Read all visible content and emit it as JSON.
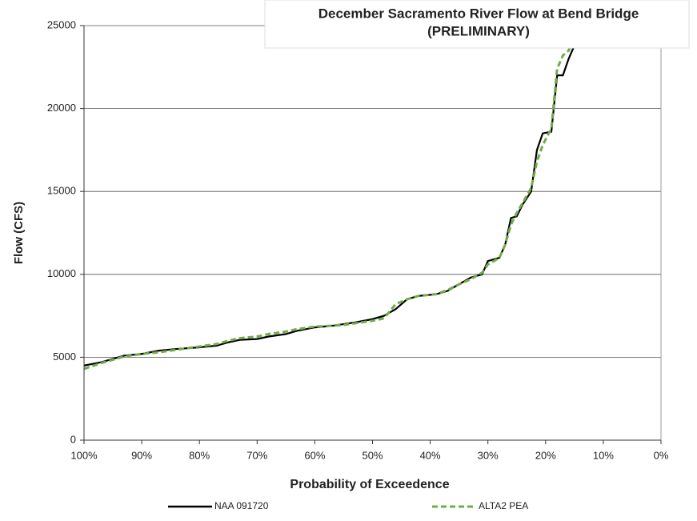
{
  "chart_data": {
    "type": "line",
    "title": "December Sacramento River Flow at Bend Bridge",
    "subtitle": "(PRELIMINARY)",
    "x_label": "Probability of Exceedence",
    "y_label": "Flow (CFS)",
    "x": [
      100,
      97,
      95,
      93,
      90,
      87,
      84,
      80,
      77,
      75,
      73,
      70,
      68,
      65,
      63,
      60,
      57,
      55,
      53,
      50,
      48,
      46,
      44,
      42,
      39,
      37,
      35,
      33,
      31,
      30,
      28,
      27,
      26,
      25,
      24,
      22.5,
      21.5,
      20.5,
      19,
      18,
      17,
      16,
      15
    ],
    "series": [
      {
        "name": "NAA 091720",
        "color": "#000000",
        "style": "solid",
        "values": [
          4500,
          4700,
          4900,
          5100,
          5200,
          5400,
          5500,
          5600,
          5700,
          5900,
          6050,
          6100,
          6250,
          6400,
          6600,
          6800,
          6900,
          7000,
          7100,
          7300,
          7500,
          7900,
          8500,
          8700,
          8800,
          9000,
          9400,
          9800,
          10000,
          10800,
          11000,
          11800,
          13400,
          13500,
          14200,
          15000,
          17500,
          18500,
          18600,
          22000,
          22000,
          23000,
          23800
        ]
      },
      {
        "name": "ALTA2 PEA",
        "color": "#70ad47",
        "style": "dashed",
        "values": [
          4300,
          4650,
          4850,
          5050,
          5200,
          5300,
          5450,
          5650,
          5800,
          6000,
          6150,
          6250,
          6400,
          6550,
          6700,
          6850,
          6900,
          6950,
          7050,
          7200,
          7350,
          8200,
          8500,
          8700,
          8800,
          9050,
          9400,
          9700,
          10100,
          10600,
          11000,
          11800,
          13000,
          13700,
          14300,
          15200,
          16800,
          17800,
          18800,
          22400,
          23200,
          23500,
          24300
        ]
      }
    ],
    "xlim": [
      100,
      0
    ],
    "xticks": [
      {
        "value": 100,
        "label": "100%"
      },
      {
        "value": 90,
        "label": "90%"
      },
      {
        "value": 80,
        "label": "80%"
      },
      {
        "value": 70,
        "label": "70%"
      },
      {
        "value": 60,
        "label": "60%"
      },
      {
        "value": 50,
        "label": "50%"
      },
      {
        "value": 40,
        "label": "40%"
      },
      {
        "value": 30,
        "label": "30%"
      },
      {
        "value": 20,
        "label": "20%"
      },
      {
        "value": 10,
        "label": "10%"
      },
      {
        "value": 0,
        "label": "0%"
      }
    ],
    "ylim": [
      0,
      25000
    ],
    "yticks": [
      0,
      5000,
      10000,
      15000,
      20000,
      25000
    ],
    "grid": true,
    "legend": "bottom"
  }
}
